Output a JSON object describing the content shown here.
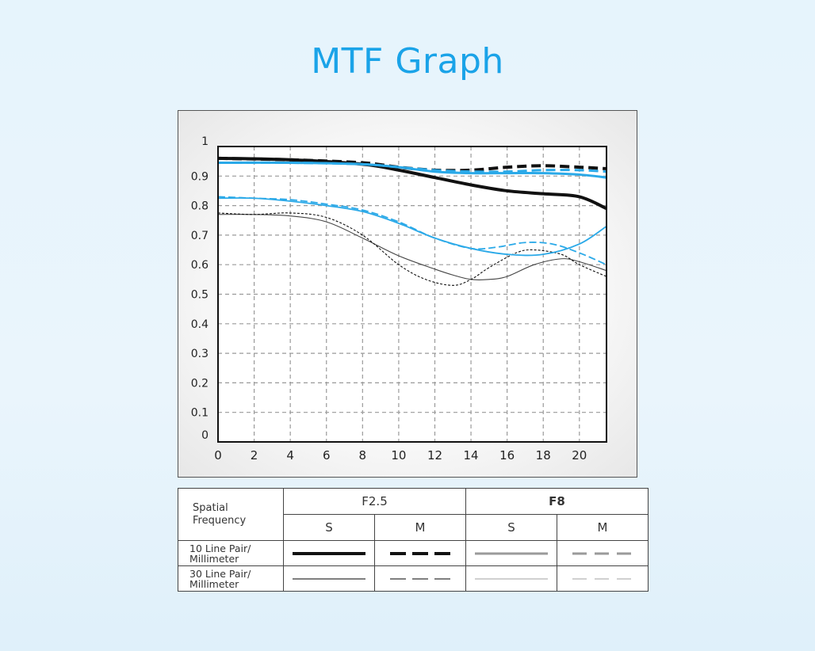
{
  "page": {
    "title": "MTF Graph"
  },
  "colors": {
    "f25": "#111111",
    "f8": "#2aa9e8",
    "title": "#1aa3e8"
  },
  "chart_data": {
    "type": "line",
    "title": "",
    "xlabel": "",
    "ylabel": "",
    "xlim": [
      0,
      21.5
    ],
    "ylim": [
      0,
      1
    ],
    "x_ticks": [
      0,
      2,
      4,
      6,
      8,
      10,
      12,
      14,
      16,
      18,
      20
    ],
    "y_ticks": [
      0,
      0.1,
      0.2,
      0.3,
      0.4,
      0.5,
      0.6,
      0.7,
      0.8,
      0.9,
      1
    ],
    "y_tick_labels": [
      "0",
      "0.1",
      "0.2",
      "0.3",
      "0.4",
      "0.5",
      "0.6",
      "0.7",
      "0.8",
      "0.9",
      "1"
    ],
    "grid": true,
    "series": [
      {
        "group": "F2.5",
        "lp": "10",
        "type": "S",
        "color": "#111111",
        "x": [
          0,
          4,
          8,
          10,
          12,
          14,
          16,
          18,
          20,
          21.5
        ],
        "y": [
          0.96,
          0.955,
          0.94,
          0.92,
          0.895,
          0.87,
          0.85,
          0.84,
          0.83,
          0.79
        ]
      },
      {
        "group": "F2.5",
        "lp": "10",
        "type": "M",
        "color": "#111111",
        "x": [
          0,
          4,
          8,
          10,
          12,
          14,
          16,
          18,
          20,
          21.5
        ],
        "y": [
          0.96,
          0.955,
          0.945,
          0.93,
          0.92,
          0.92,
          0.93,
          0.935,
          0.93,
          0.925
        ]
      },
      {
        "group": "F8",
        "lp": "10",
        "type": "S",
        "color": "#2aa9e8",
        "x": [
          0,
          4,
          8,
          10,
          12,
          14,
          16,
          18,
          20,
          21.5
        ],
        "y": [
          0.945,
          0.945,
          0.94,
          0.93,
          0.915,
          0.91,
          0.91,
          0.91,
          0.905,
          0.895
        ]
      },
      {
        "group": "F8",
        "lp": "10",
        "type": "M",
        "color": "#2aa9e8",
        "x": [
          0,
          4,
          8,
          10,
          12,
          14,
          16,
          18,
          20,
          21.5
        ],
        "y": [
          0.945,
          0.945,
          0.94,
          0.93,
          0.92,
          0.915,
          0.915,
          0.92,
          0.92,
          0.915
        ]
      },
      {
        "group": "F2.5",
        "lp": "30",
        "type": "S",
        "color": "#444444",
        "x": [
          0,
          2,
          4,
          6,
          8,
          10,
          12,
          13,
          14,
          15,
          16,
          17.5,
          19,
          20,
          21.5
        ],
        "y": [
          0.77,
          0.77,
          0.765,
          0.745,
          0.69,
          0.63,
          0.585,
          0.565,
          0.55,
          0.55,
          0.56,
          0.6,
          0.62,
          0.61,
          0.58
        ]
      },
      {
        "group": "F2.5",
        "lp": "30",
        "type": "M",
        "color": "#111111",
        "x": [
          0,
          2,
          4,
          6,
          8,
          10,
          11.5,
          13,
          14,
          15,
          16.5,
          17.5,
          19,
          20,
          21.5
        ],
        "y": [
          0.775,
          0.77,
          0.775,
          0.76,
          0.7,
          0.6,
          0.55,
          0.53,
          0.55,
          0.59,
          0.64,
          0.65,
          0.635,
          0.6,
          0.56
        ]
      },
      {
        "group": "F8",
        "lp": "30",
        "type": "S",
        "color": "#2aa9e8",
        "x": [
          0,
          2,
          4,
          6,
          8,
          10,
          12,
          14,
          16,
          18,
          20,
          21.5
        ],
        "y": [
          0.825,
          0.825,
          0.815,
          0.8,
          0.78,
          0.74,
          0.69,
          0.655,
          0.635,
          0.635,
          0.67,
          0.73
        ]
      },
      {
        "group": "F8",
        "lp": "30",
        "type": "M",
        "color": "#2aa9e8",
        "x": [
          0,
          2,
          4,
          6,
          8,
          10,
          12,
          14,
          15.5,
          17,
          18.5,
          20,
          21.5
        ],
        "y": [
          0.83,
          0.825,
          0.82,
          0.805,
          0.785,
          0.745,
          0.69,
          0.655,
          0.66,
          0.675,
          0.67,
          0.64,
          0.6
        ]
      }
    ]
  },
  "legend": {
    "header_label_1": "Spatial",
    "header_label_2": "Frequency",
    "f25": "F2.5",
    "f8": "F8",
    "s": "S",
    "m": "M",
    "row10_1": "10 Line Pair/",
    "row10_2": "Millimeter",
    "row30_1": "30 Line Pair/",
    "row30_2": "Millimeter"
  }
}
